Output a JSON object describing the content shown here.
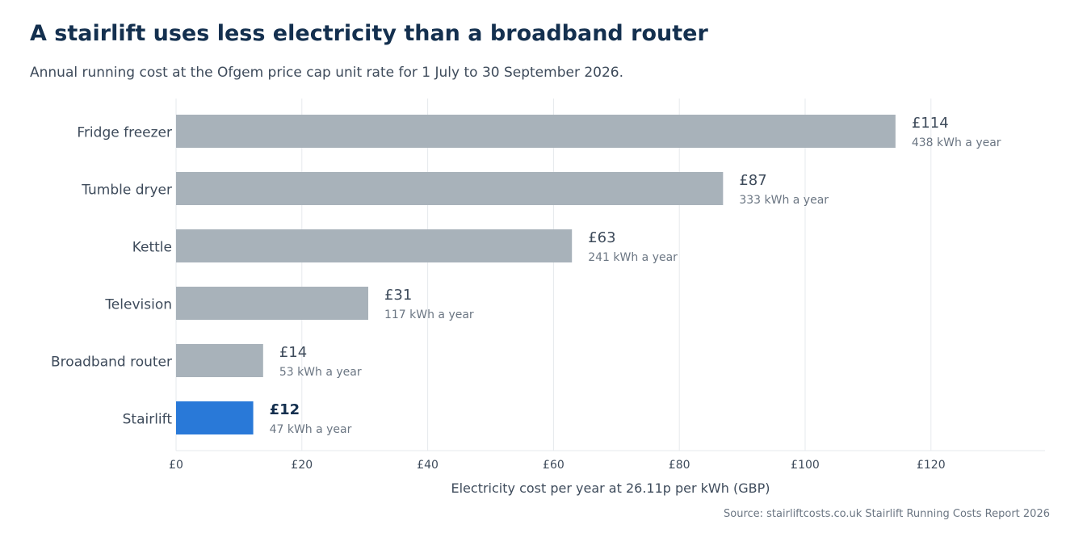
{
  "title": "A stairlift uses less electricity than a broadband router",
  "subtitle": "Annual running cost at the Ofgem price cap unit rate for 1 July to 30 September 2026.",
  "source": "Source: stairliftcosts.co.uk Stairlift Running Costs Report 2026",
  "colors": {
    "bar_default": "#a8b2ba",
    "bar_highlight": "#2979d8",
    "grid": "#e6e9ec",
    "text_dark": "#14304f",
    "text_mid": "#3e4b5b",
    "text_muted": "#6b7683"
  },
  "chart_data": {
    "type": "bar",
    "orientation": "horizontal",
    "categories": [
      "Fridge freezer",
      "Tumble dryer",
      "Kettle",
      "Television",
      "Broadband router",
      "Stairlift"
    ],
    "values": [
      114.36,
      86.95,
      62.93,
      30.55,
      13.84,
      12.27
    ],
    "value_labels": [
      "£114",
      "£87",
      "£63",
      "£31",
      "£14",
      "£12"
    ],
    "sub_labels": [
      "438 kWh a year",
      "333 kWh a year",
      "241 kWh a year",
      "117 kWh a year",
      "53 kWh a year",
      "47 kWh a year"
    ],
    "highlight": "Stairlift",
    "xlabel": "Electricity cost per year at 26.11p per kWh (GBP)",
    "ylabel": "",
    "xlim": [
      0,
      138
    ],
    "xticks": [
      0,
      20,
      40,
      60,
      80,
      100,
      120
    ],
    "xtick_labels": [
      "£0",
      "£20",
      "£40",
      "£60",
      "£80",
      "£100",
      "£120"
    ],
    "grid": true
  }
}
